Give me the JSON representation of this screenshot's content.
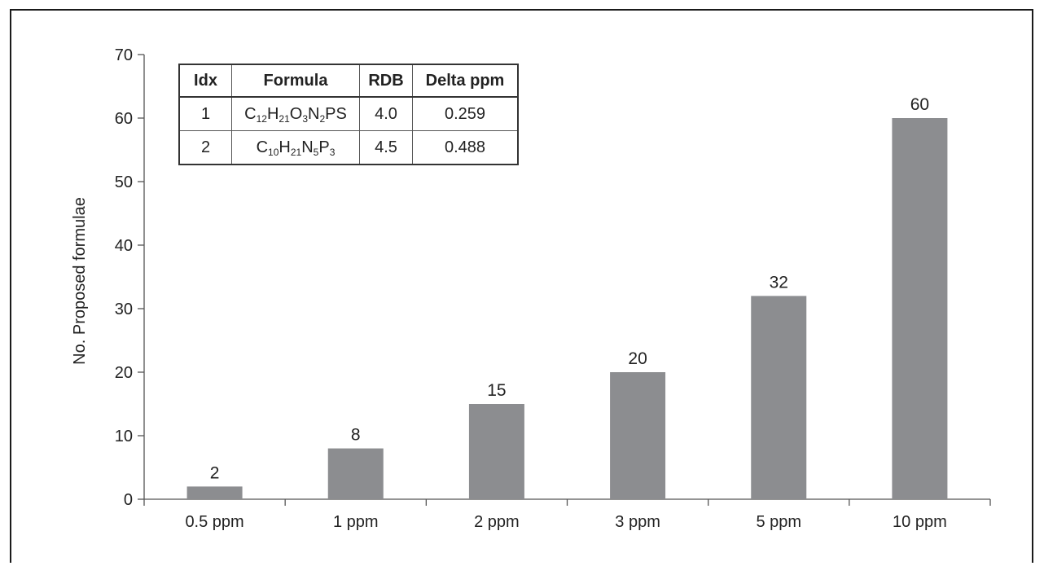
{
  "chart_data": {
    "type": "bar",
    "categories": [
      "0.5 ppm",
      "1 ppm",
      "2 ppm",
      "3 ppm",
      "5 ppm",
      "10 ppm"
    ],
    "values": [
      2,
      8,
      15,
      20,
      32,
      60
    ],
    "data_labels": [
      "2",
      "8",
      "15",
      "20",
      "32",
      "60"
    ],
    "ylabel": "No. Proposed formulae",
    "ylim": [
      0,
      70
    ],
    "yticks": [
      0,
      10,
      20,
      30,
      40,
      50,
      60,
      70
    ],
    "bar_color": "#8c8d90",
    "grid": false
  },
  "table": {
    "headers": [
      "Idx",
      "Formula",
      "RDB",
      "Delta ppm"
    ],
    "rows": [
      {
        "idx": "1",
        "formula": [
          [
            "C",
            "12"
          ],
          [
            "H",
            "21"
          ],
          [
            "O",
            "3"
          ],
          [
            "N",
            "2"
          ],
          [
            "PS",
            ""
          ]
        ],
        "rdb": "4.0",
        "delta": "0.259"
      },
      {
        "idx": "2",
        "formula": [
          [
            "C",
            "10"
          ],
          [
            "H",
            "21"
          ],
          [
            "N",
            "5"
          ],
          [
            "P",
            "3"
          ]
        ],
        "rdb": "4.5",
        "delta": "0.488"
      }
    ]
  }
}
